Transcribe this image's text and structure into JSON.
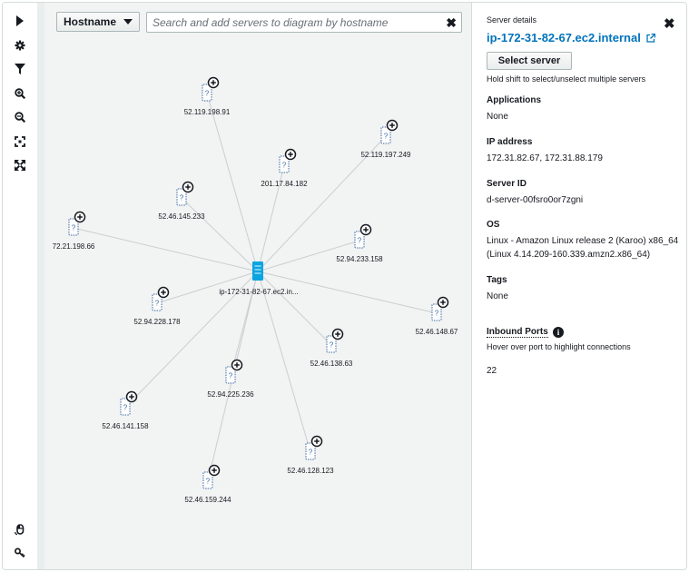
{
  "toolbar": {
    "items": [
      {
        "icon": "expand-panel-icon"
      },
      {
        "icon": "settings-icon"
      },
      {
        "icon": "filter-icon"
      },
      {
        "icon": "zoom-in-icon"
      },
      {
        "icon": "zoom-out-icon"
      },
      {
        "icon": "fit-to-screen-icon"
      },
      {
        "icon": "fullscreen-icon"
      }
    ],
    "bottom_items": [
      {
        "icon": "mouse-icon"
      },
      {
        "icon": "key-icon"
      }
    ]
  },
  "canvas": {
    "group_by_label": "Hostname",
    "search_placeholder": "Search and add servers to diagram by hostname",
    "center_node": {
      "label": "ip-172-31-82-67.ec2.in..."
    },
    "nodes": [
      {
        "label": "52.119.198.91"
      },
      {
        "label": "52.119.197.249"
      },
      {
        "label": "201.17.84.182"
      },
      {
        "label": "52.46.145.233"
      },
      {
        "label": "72.21.198.66"
      },
      {
        "label": "52.94.233.158"
      },
      {
        "label": "52.94.228.178"
      },
      {
        "label": "52.46.148.67"
      },
      {
        "label": "52.46.138.63"
      },
      {
        "label": "52.94.225.236"
      },
      {
        "label": "52.46.141.158"
      },
      {
        "label": "52.46.128.123"
      },
      {
        "label": "52.46.159.244"
      }
    ]
  },
  "panel": {
    "title": "Server details",
    "server_name": "ip-172-31-82-67.ec2.internal",
    "select_button": "Select server",
    "hint": "Hold shift to select/unselect multiple servers",
    "applications": {
      "heading": "Applications",
      "value": "None"
    },
    "ip_address": {
      "heading": "IP address",
      "value": "172.31.82.67, 172.31.88.179"
    },
    "server_id": {
      "heading": "Server ID",
      "value": "d-server-00fsro0or7zgni"
    },
    "os": {
      "heading": "OS",
      "value": "Linux - Amazon Linux release 2 (Karoo) x86_64 (Linux 4.14.209-160.339.amzn2.x86_64)"
    },
    "tags": {
      "heading": "Tags",
      "value": "None"
    },
    "inbound_ports": {
      "heading": "Inbound Ports",
      "hint": "Hover over port to highlight connections",
      "value": "22"
    }
  },
  "colors": {
    "link": "#0073bb",
    "server_icon": "#0aa5e0",
    "edge": "#c9cfd1",
    "node_outline": "#3b6aa0"
  }
}
